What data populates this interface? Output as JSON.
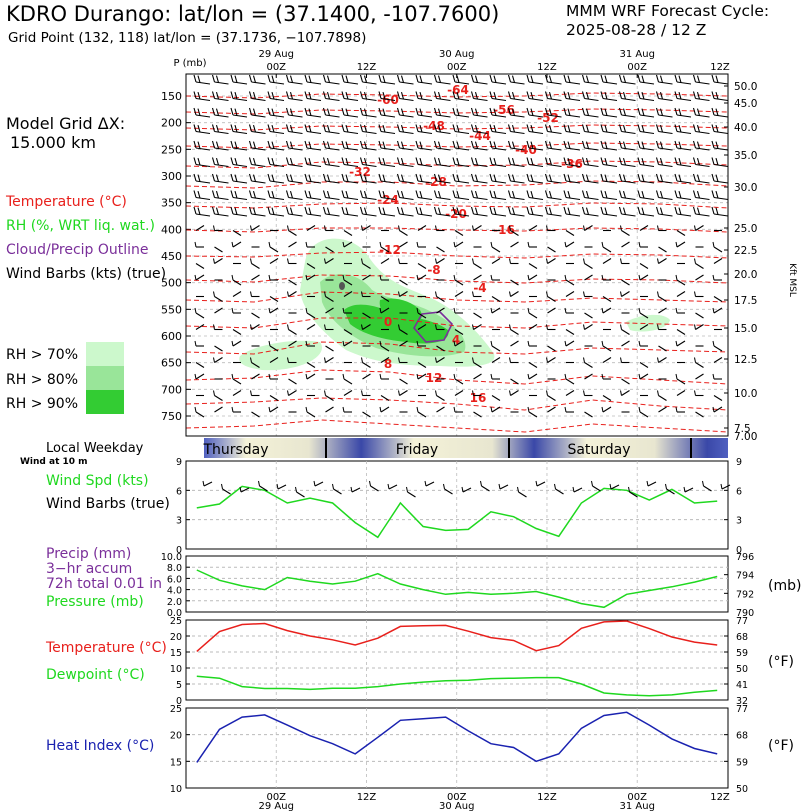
{
  "header": {
    "title": "KDRO Durango:  lat/lon = (37.1400, -107.7600)",
    "subtitle": "Grid Point (132, 118) lat/lon = (37.1736, −107.7898)",
    "model_line1": "MMM WRF Forecast Cycle:",
    "model_line2": "2025-08-28 / 12  Z"
  },
  "legend": {
    "grid_line1": "Model Grid ΔX:",
    "grid_line2": "15.000 km",
    "temperature": "Temperature (°C)",
    "rh": "RH (%, WRT liq. wat.)",
    "cloud": "Cloud/Precip Outline",
    "wind": "Wind Barbs (kts) (true)",
    "rh70": "RH > 70%",
    "rh80": "RH > 80%",
    "rh90": "RH > 90%",
    "colors": {
      "rh70": "#ccf8cc",
      "rh80": "#99e599",
      "rh90": "#33cc33",
      "temp": "#e8201c",
      "green": "#1fd81f",
      "blue": "#1a22b0",
      "purple": "#7a2f9a"
    }
  },
  "panel_labels": {
    "local_weekday": "Local Weekday",
    "wind_at": "Wind at 10 m",
    "wind_spd": "Wind Spd (kts)",
    "wind_barbs": "Wind Barbs (true)",
    "precip1": "Precip (mm)",
    "precip2": "3−hr accum",
    "precip3": "72h total 0.01 in",
    "pressure": "Pressure (mb)",
    "mb": "(mb)",
    "temperature": "Temperature (°C)",
    "dewpoint": "Dewpoint (°C)",
    "degf1": "(°F)",
    "heat_index": "Heat Index (°C)",
    "degf2": "(°F)"
  },
  "chart_data": [
    {
      "type": "heatmap",
      "name": "cross-section",
      "y_axis_label": "P (mb)",
      "right_axis_label": "Kft MSL",
      "x_top_ticks": [
        "00Z",
        "12Z",
        "00Z",
        "12Z",
        "00Z",
        "12Z"
      ],
      "x_top_dates": [
        "29 Aug",
        "30 Aug",
        "31 Aug"
      ],
      "pressure_ticks": [
        150,
        200,
        250,
        300,
        350,
        400,
        450,
        500,
        550,
        600,
        650,
        700,
        750
      ],
      "kft_ticks": [
        "50.0",
        "45.0",
        "40.0",
        "35.0",
        "30.0",
        "25.0",
        "22.5",
        "20.0",
        "17.5",
        "15.0",
        "12.5",
        "10.0",
        "7.5",
        "7.00"
      ],
      "temp_labels": [
        "-64",
        "-60",
        "-56",
        "-52",
        "-48",
        "-44",
        "-40",
        "-36",
        "-32",
        "-28",
        "-24",
        "-20",
        "-16",
        "-12",
        "-8",
        "-4",
        "0",
        "4",
        "8",
        "12",
        "16"
      ]
    },
    {
      "type": "table",
      "name": "weekday-bar",
      "days": [
        "Thursday",
        "Friday",
        "Saturday"
      ]
    },
    {
      "type": "line",
      "name": "wind-speed",
      "ylim": [
        0,
        9
      ],
      "y_ticks": [
        0,
        3,
        6,
        9
      ],
      "values": [
        4.2,
        4.6,
        6.4,
        6.0,
        4.7,
        5.2,
        4.7,
        2.7,
        1.2,
        4.7,
        2.3,
        1.9,
        2.0,
        3.8,
        3.3,
        2.1,
        1.3,
        4.7,
        6.2,
        6.0,
        5.0,
        6.1,
        4.7,
        4.9
      ]
    },
    {
      "type": "line",
      "name": "pressure",
      "ylim": [
        790,
        796
      ],
      "left_ticks": [
        "10.0",
        "8.0",
        "6.0",
        "4.0",
        "2.0",
        "0.0"
      ],
      "right_ticks": [
        796,
        794,
        792,
        790
      ],
      "precip_total": "72h total 0.01 in",
      "values": [
        794.5,
        793.4,
        792.8,
        792.4,
        793.7,
        793.3,
        793.0,
        793.3,
        794.1,
        793.0,
        792.4,
        791.9,
        792.1,
        791.9,
        792.0,
        792.2,
        791.6,
        790.9,
        790.5,
        791.9,
        792.3,
        792.7,
        793.2,
        793.8
      ]
    },
    {
      "type": "line",
      "name": "temperature-dewpoint",
      "ylim": [
        0,
        25
      ],
      "y_ticks": [
        0,
        5,
        10,
        15,
        20,
        25
      ],
      "right_ticks": [
        32,
        41,
        50,
        59,
        68,
        77
      ],
      "series": [
        {
          "name": "Temperature",
          "values": [
            15.2,
            21.4,
            23.6,
            23.9,
            21.7,
            20.0,
            18.8,
            17.2,
            19.3,
            23.0,
            23.2,
            23.3,
            21.5,
            19.5,
            18.6,
            15.4,
            17.0,
            22.4,
            24.4,
            24.7,
            22.3,
            19.7,
            18.1,
            17.2
          ]
        },
        {
          "name": "Dewpoint",
          "values": [
            7.4,
            6.8,
            4.2,
            3.6,
            3.6,
            3.3,
            3.7,
            3.7,
            4.2,
            5.0,
            5.6,
            6.0,
            6.2,
            6.7,
            6.8,
            7.0,
            7.0,
            5.0,
            2.2,
            1.6,
            1.3,
            1.6,
            2.4,
            3.0
          ]
        }
      ]
    },
    {
      "type": "line",
      "name": "heat-index",
      "ylim": [
        10,
        25
      ],
      "y_ticks": [
        10,
        15,
        20,
        25
      ],
      "right_ticks": [
        50,
        59,
        68,
        77
      ],
      "x_bottom_ticks": [
        "00Z",
        "12Z",
        "00Z",
        "12Z",
        "00Z",
        "12Z"
      ],
      "x_bottom_dates": [
        "29 Aug",
        "30 Aug",
        "31 Aug"
      ],
      "values": [
        14.8,
        21.0,
        23.3,
        23.7,
        21.8,
        19.8,
        18.3,
        16.4,
        19.5,
        22.7,
        23.0,
        23.3,
        20.7,
        18.3,
        17.6,
        15.0,
        16.4,
        21.2,
        23.6,
        24.2,
        21.8,
        19.2,
        17.4,
        16.4
      ]
    }
  ]
}
